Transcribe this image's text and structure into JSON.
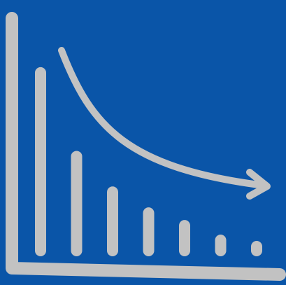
{
  "icon": {
    "name": "decreasing-bar-chart-icon",
    "colors": {
      "background": "#0a55a8",
      "foreground": "#c2c2c2"
    },
    "bar_levels": [
      0.85,
      0.45,
      0.28,
      0.18,
      0.12,
      0.05,
      0.02
    ],
    "trend": "decreasing"
  }
}
